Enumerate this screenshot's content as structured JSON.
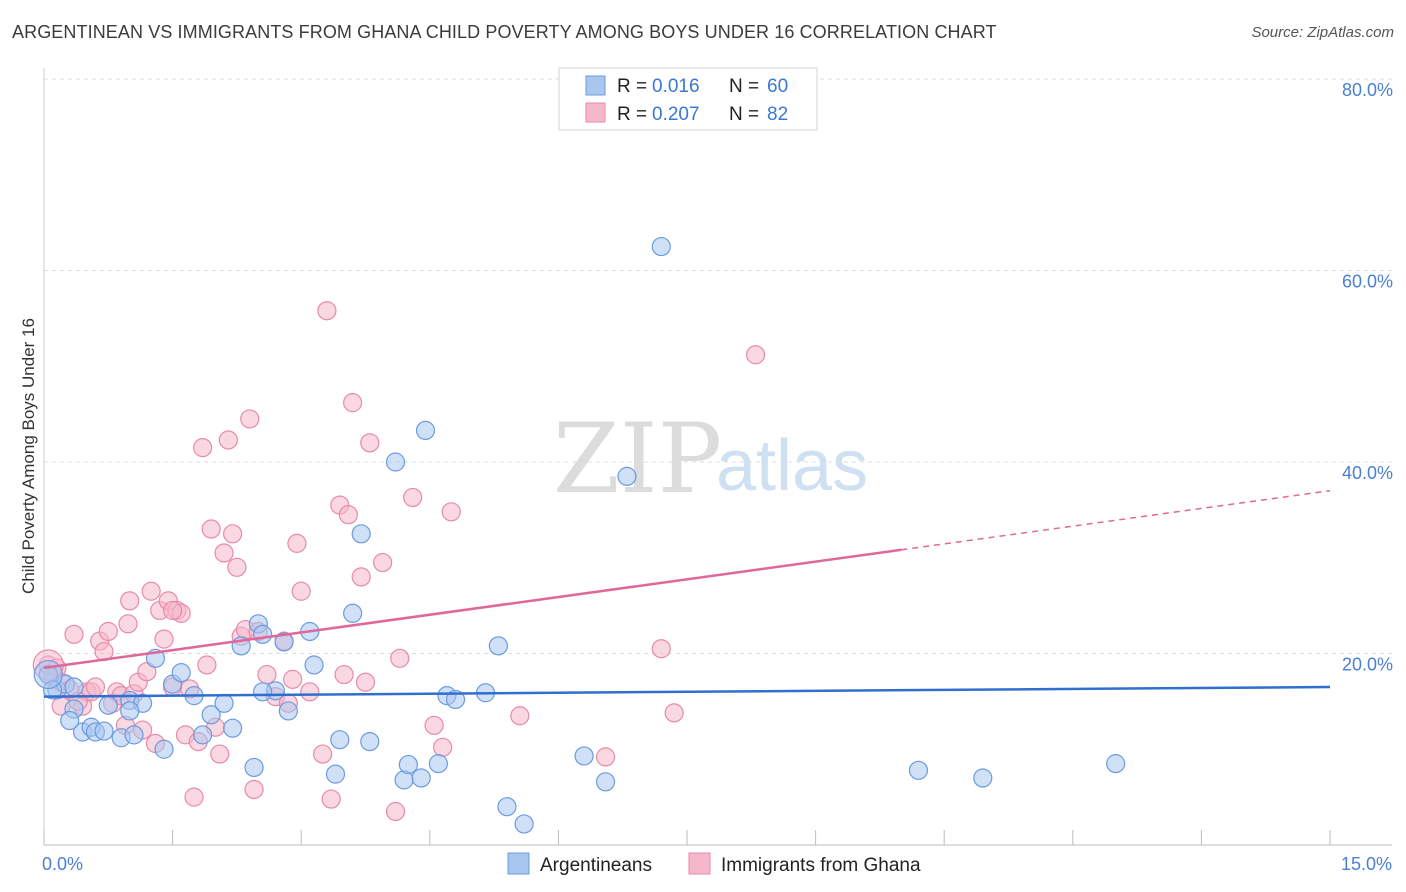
{
  "title": "ARGENTINEAN VS IMMIGRANTS FROM GHANA CHILD POVERTY AMONG BOYS UNDER 16 CORRELATION CHART",
  "source": "Source: ZipAtlas.com",
  "watermark": {
    "zip": "ZIP",
    "atlas": "atlas"
  },
  "colors": {
    "blue_fill": "#a9c6ef",
    "blue_stroke": "#6b9be0",
    "blue_line": "#2f6fd0",
    "pink_fill": "#f5b8cb",
    "pink_stroke": "#e88aa8",
    "pink_line": "#e0679a",
    "grid": "#dcdcdc",
    "tick_text": "#4a7fd4"
  },
  "legend": {
    "rows": [
      {
        "r_label": "R =",
        "r_value": "0.016",
        "n_label": "N =",
        "n_value": "60"
      },
      {
        "r_label": "R =",
        "r_value": "0.207",
        "n_label": "N =",
        "n_value": "82"
      }
    ]
  },
  "bottom_legend": {
    "series1": "Argentineans",
    "series2": "Immigrants from Ghana"
  },
  "chart_data": {
    "type": "scatter",
    "title": "ARGENTINEAN VS IMMIGRANTS FROM GHANA CHILD POVERTY AMONG BOYS UNDER 16 CORRELATION CHART",
    "xlabel": "",
    "ylabel": "Child Poverty Among Boys Under 16",
    "xlim": [
      0,
      15
    ],
    "ylim": [
      0,
      80
    ],
    "x_tick_labels": [
      "0.0%",
      "15.0%"
    ],
    "y_ticks": [
      20,
      40,
      60,
      80
    ],
    "y_tick_labels": [
      "20.0%",
      "40.0%",
      "60.0%",
      "80.0%"
    ],
    "grid": "horizontal dashed",
    "legend_position": "top-center",
    "series": [
      {
        "name": "Argentineans",
        "r": 0.016,
        "n": 60,
        "trend": {
          "x0": 0,
          "y0": 15.5,
          "x1": 15,
          "y1": 16.5,
          "dashed_from": null
        },
        "points": [
          [
            0.05,
            17.8
          ],
          [
            0.15,
            16.2
          ],
          [
            0.25,
            16.8
          ],
          [
            0.35,
            14.2
          ],
          [
            0.45,
            11.8
          ],
          [
            0.55,
            12.3
          ],
          [
            0.6,
            11.8
          ],
          [
            0.75,
            14.6
          ],
          [
            0.9,
            11.2
          ],
          [
            1.0,
            15.1
          ],
          [
            1.05,
            11.5
          ],
          [
            1.15,
            14.8
          ],
          [
            1.3,
            19.5
          ],
          [
            1.4,
            10.0
          ],
          [
            1.5,
            16.8
          ],
          [
            1.6,
            18.0
          ],
          [
            1.75,
            15.6
          ],
          [
            1.85,
            11.5
          ],
          [
            1.95,
            13.6
          ],
          [
            2.1,
            14.8
          ],
          [
            2.2,
            12.2
          ],
          [
            2.3,
            20.8
          ],
          [
            2.45,
            8.1
          ],
          [
            2.5,
            23.1
          ],
          [
            2.55,
            22.0
          ],
          [
            2.7,
            16.1
          ],
          [
            2.8,
            21.2
          ],
          [
            2.85,
            14.0
          ],
          [
            3.1,
            22.3
          ],
          [
            3.15,
            18.8
          ],
          [
            3.4,
            7.4
          ],
          [
            3.45,
            11.0
          ],
          [
            3.6,
            24.2
          ],
          [
            3.7,
            32.5
          ],
          [
            3.8,
            10.8
          ],
          [
            4.1,
            40.0
          ],
          [
            4.2,
            6.8
          ],
          [
            4.25,
            8.4
          ],
          [
            4.4,
            7.0
          ],
          [
            4.45,
            43.3
          ],
          [
            4.6,
            8.5
          ],
          [
            4.7,
            15.6
          ],
          [
            4.8,
            15.2
          ],
          [
            5.15,
            15.9
          ],
          [
            5.3,
            20.8
          ],
          [
            5.4,
            4.0
          ],
          [
            5.6,
            2.2
          ],
          [
            6.3,
            9.3
          ],
          [
            6.55,
            6.6
          ],
          [
            6.8,
            38.5
          ],
          [
            7.2,
            62.5
          ],
          [
            10.2,
            7.8
          ],
          [
            10.95,
            7.0
          ],
          [
            12.5,
            8.5
          ],
          [
            0.1,
            16.2
          ],
          [
            0.3,
            13.0
          ],
          [
            1.0,
            14.0
          ],
          [
            0.35,
            16.5
          ],
          [
            0.7,
            11.9
          ],
          [
            2.55,
            16.0
          ]
        ]
      },
      {
        "name": "Immigrants from Ghana",
        "r": 0.207,
        "n": 82,
        "trend": {
          "x0": 0,
          "y0": 18.5,
          "x1": 15,
          "y1": 37.0,
          "dashed_from": 10.0
        },
        "points": [
          [
            0.05,
            18.8
          ],
          [
            0.15,
            18.5
          ],
          [
            0.2,
            17.0
          ],
          [
            0.3,
            16.2
          ],
          [
            0.35,
            22.0
          ],
          [
            0.45,
            14.5
          ],
          [
            0.5,
            16.0
          ],
          [
            0.55,
            16.0
          ],
          [
            0.65,
            21.3
          ],
          [
            0.7,
            20.2
          ],
          [
            0.75,
            22.3
          ],
          [
            0.8,
            14.8
          ],
          [
            0.85,
            16.0
          ],
          [
            0.9,
            15.6
          ],
          [
            0.95,
            12.5
          ],
          [
            0.98,
            23.1
          ],
          [
            1.0,
            25.5
          ],
          [
            1.05,
            15.8
          ],
          [
            1.1,
            17.0
          ],
          [
            1.15,
            12.0
          ],
          [
            1.2,
            18.1
          ],
          [
            1.25,
            26.5
          ],
          [
            1.3,
            10.6
          ],
          [
            1.35,
            24.5
          ],
          [
            1.4,
            21.5
          ],
          [
            1.45,
            25.5
          ],
          [
            1.5,
            16.5
          ],
          [
            1.55,
            24.5
          ],
          [
            1.6,
            24.2
          ],
          [
            1.65,
            11.5
          ],
          [
            1.7,
            16.3
          ],
          [
            1.75,
            5.0
          ],
          [
            1.8,
            10.8
          ],
          [
            1.85,
            41.5
          ],
          [
            1.9,
            18.8
          ],
          [
            1.95,
            33.0
          ],
          [
            2.0,
            12.3
          ],
          [
            2.05,
            9.5
          ],
          [
            2.1,
            30.5
          ],
          [
            2.15,
            42.3
          ],
          [
            2.2,
            32.5
          ],
          [
            2.25,
            29.0
          ],
          [
            2.3,
            21.8
          ],
          [
            2.35,
            22.5
          ],
          [
            2.4,
            44.5
          ],
          [
            2.45,
            5.8
          ],
          [
            2.5,
            22.3
          ],
          [
            2.6,
            17.8
          ],
          [
            2.7,
            15.5
          ],
          [
            2.8,
            21.3
          ],
          [
            2.85,
            14.8
          ],
          [
            2.9,
            17.3
          ],
          [
            2.95,
            31.5
          ],
          [
            3.0,
            26.5
          ],
          [
            3.1,
            16.0
          ],
          [
            3.25,
            9.5
          ],
          [
            3.3,
            55.8
          ],
          [
            3.35,
            4.8
          ],
          [
            3.45,
            35.5
          ],
          [
            3.5,
            17.8
          ],
          [
            3.55,
            34.5
          ],
          [
            3.6,
            46.2
          ],
          [
            3.7,
            28.0
          ],
          [
            3.75,
            17.0
          ],
          [
            3.8,
            42.0
          ],
          [
            3.95,
            29.5
          ],
          [
            4.1,
            3.5
          ],
          [
            4.15,
            19.5
          ],
          [
            4.3,
            36.3
          ],
          [
            4.55,
            12.5
          ],
          [
            4.65,
            10.2
          ],
          [
            4.75,
            34.8
          ],
          [
            5.55,
            13.5
          ],
          [
            6.55,
            9.2
          ],
          [
            7.2,
            20.5
          ],
          [
            7.35,
            13.8
          ],
          [
            8.3,
            51.2
          ],
          [
            0.1,
            17.5
          ],
          [
            0.2,
            14.5
          ],
          [
            0.4,
            15.0
          ],
          [
            0.6,
            16.5
          ],
          [
            1.5,
            24.5
          ]
        ]
      }
    ]
  },
  "sizes_note": ""
}
